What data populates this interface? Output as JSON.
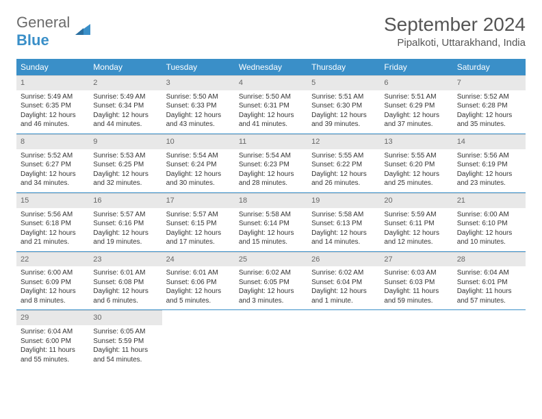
{
  "brand": {
    "part1": "General",
    "part2": "Blue"
  },
  "title": "September 2024",
  "location": "Pipalkoti, Uttarakhand, India",
  "colors": {
    "header_bg": "#3a8fc8",
    "daynum_bg": "#e8e8e8",
    "text": "#333333",
    "border": "#3a8fc8"
  },
  "fonts": {
    "title_size": 28,
    "location_size": 15,
    "th_size": 12,
    "cell_size": 10
  },
  "layout": {
    "cols": 7,
    "rows": 5,
    "first_day_col": 0,
    "days_in_month": 30
  },
  "weekdays": [
    "Sunday",
    "Monday",
    "Tuesday",
    "Wednesday",
    "Thursday",
    "Friday",
    "Saturday"
  ],
  "days": [
    {
      "n": 1,
      "sr": "5:49 AM",
      "ss": "6:35 PM",
      "dl": "12 hours and 46 minutes."
    },
    {
      "n": 2,
      "sr": "5:49 AM",
      "ss": "6:34 PM",
      "dl": "12 hours and 44 minutes."
    },
    {
      "n": 3,
      "sr": "5:50 AM",
      "ss": "6:33 PM",
      "dl": "12 hours and 43 minutes."
    },
    {
      "n": 4,
      "sr": "5:50 AM",
      "ss": "6:31 PM",
      "dl": "12 hours and 41 minutes."
    },
    {
      "n": 5,
      "sr": "5:51 AM",
      "ss": "6:30 PM",
      "dl": "12 hours and 39 minutes."
    },
    {
      "n": 6,
      "sr": "5:51 AM",
      "ss": "6:29 PM",
      "dl": "12 hours and 37 minutes."
    },
    {
      "n": 7,
      "sr": "5:52 AM",
      "ss": "6:28 PM",
      "dl": "12 hours and 35 minutes."
    },
    {
      "n": 8,
      "sr": "5:52 AM",
      "ss": "6:27 PM",
      "dl": "12 hours and 34 minutes."
    },
    {
      "n": 9,
      "sr": "5:53 AM",
      "ss": "6:25 PM",
      "dl": "12 hours and 32 minutes."
    },
    {
      "n": 10,
      "sr": "5:54 AM",
      "ss": "6:24 PM",
      "dl": "12 hours and 30 minutes."
    },
    {
      "n": 11,
      "sr": "5:54 AM",
      "ss": "6:23 PM",
      "dl": "12 hours and 28 minutes."
    },
    {
      "n": 12,
      "sr": "5:55 AM",
      "ss": "6:22 PM",
      "dl": "12 hours and 26 minutes."
    },
    {
      "n": 13,
      "sr": "5:55 AM",
      "ss": "6:20 PM",
      "dl": "12 hours and 25 minutes."
    },
    {
      "n": 14,
      "sr": "5:56 AM",
      "ss": "6:19 PM",
      "dl": "12 hours and 23 minutes."
    },
    {
      "n": 15,
      "sr": "5:56 AM",
      "ss": "6:18 PM",
      "dl": "12 hours and 21 minutes."
    },
    {
      "n": 16,
      "sr": "5:57 AM",
      "ss": "6:16 PM",
      "dl": "12 hours and 19 minutes."
    },
    {
      "n": 17,
      "sr": "5:57 AM",
      "ss": "6:15 PM",
      "dl": "12 hours and 17 minutes."
    },
    {
      "n": 18,
      "sr": "5:58 AM",
      "ss": "6:14 PM",
      "dl": "12 hours and 15 minutes."
    },
    {
      "n": 19,
      "sr": "5:58 AM",
      "ss": "6:13 PM",
      "dl": "12 hours and 14 minutes."
    },
    {
      "n": 20,
      "sr": "5:59 AM",
      "ss": "6:11 PM",
      "dl": "12 hours and 12 minutes."
    },
    {
      "n": 21,
      "sr": "6:00 AM",
      "ss": "6:10 PM",
      "dl": "12 hours and 10 minutes."
    },
    {
      "n": 22,
      "sr": "6:00 AM",
      "ss": "6:09 PM",
      "dl": "12 hours and 8 minutes."
    },
    {
      "n": 23,
      "sr": "6:01 AM",
      "ss": "6:08 PM",
      "dl": "12 hours and 6 minutes."
    },
    {
      "n": 24,
      "sr": "6:01 AM",
      "ss": "6:06 PM",
      "dl": "12 hours and 5 minutes."
    },
    {
      "n": 25,
      "sr": "6:02 AM",
      "ss": "6:05 PM",
      "dl": "12 hours and 3 minutes."
    },
    {
      "n": 26,
      "sr": "6:02 AM",
      "ss": "6:04 PM",
      "dl": "12 hours and 1 minute."
    },
    {
      "n": 27,
      "sr": "6:03 AM",
      "ss": "6:03 PM",
      "dl": "11 hours and 59 minutes."
    },
    {
      "n": 28,
      "sr": "6:04 AM",
      "ss": "6:01 PM",
      "dl": "11 hours and 57 minutes."
    },
    {
      "n": 29,
      "sr": "6:04 AM",
      "ss": "6:00 PM",
      "dl": "11 hours and 55 minutes."
    },
    {
      "n": 30,
      "sr": "6:05 AM",
      "ss": "5:59 PM",
      "dl": "11 hours and 54 minutes."
    }
  ],
  "labels": {
    "sunrise": "Sunrise:",
    "sunset": "Sunset:",
    "daylight": "Daylight:"
  }
}
